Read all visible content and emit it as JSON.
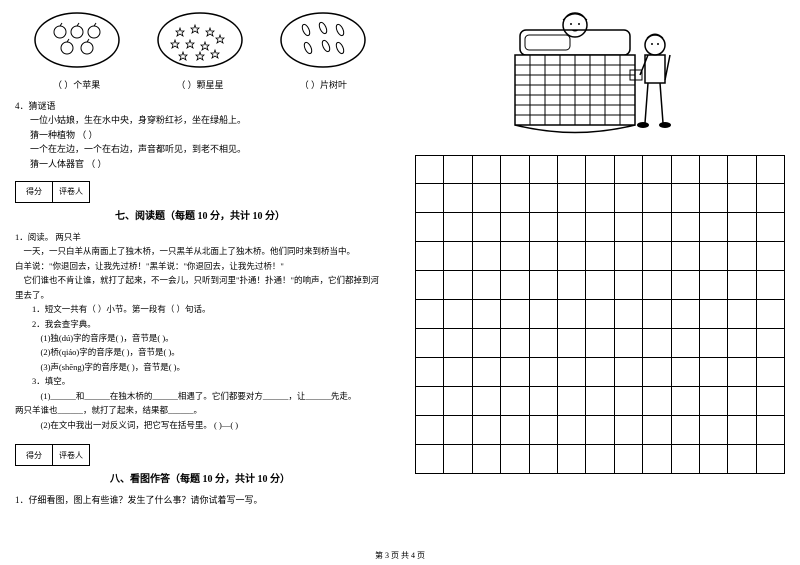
{
  "ovals": {
    "labels": [
      "（       ）个苹果",
      "（       ）颗星星",
      "（       ）片树叶"
    ]
  },
  "riddle": {
    "num": "4．猜谜语",
    "lines": [
      "一位小姑娘，生在水中央，身穿粉红衫，坐在绿船上。",
      "猜一种植物          （            ）",
      "一个在左边，一个在右边，声音都听见，到老不相见。",
      "猜一人体器官        （            ）"
    ]
  },
  "score_labels": [
    "得分",
    "评卷人"
  ],
  "section7": {
    "title": "七、阅读题（每题 10 分，共计 10 分）",
    "q1": "1．阅读。                      两只羊",
    "para1": "一天，一只白羊从南面上了独木桥，一只黑羊从北面上了独木桥。他们同时来到桥当中。",
    "para2": "白羊说：\"你退回去，让我先过桥！\"黑羊说：\"你退回去，让我先过桥！\"",
    "para3": "它们谁也不肯让谁，就打了起来，不一会儿，只听到河里\"扑通！扑通！\"的响声，它们都掉到河里去了。",
    "q_a": "1．短文一共有（  ）小节。第一段有（  ）句话。",
    "q_b": "2．我会查字典。",
    "q_b1": "(1)独(dú)字的音序是(    )，音节是(    )。",
    "q_b2": "(2)桥(qiáo)字的音序是(    )，音节是(    )。",
    "q_b3": "(3)声(shēng)字的音序是(    )，音节是(    )。",
    "q_c": "3．填空。",
    "q_c1": "(1)______和______在独木桥的______相遇了。它们都要对方______，让______先走。",
    "q_c2": "两只羊谁也______，就打了起来，结果都______。",
    "q_c3": "(2)在文中我出一对反义词，把它写在括号里。    (      )—(      )"
  },
  "section8": {
    "title": "八、看图作答（每题 10 分，共计 10 分）",
    "q1": "1．仔细看图，图上有些谁？发生了什么事？请你试着写一写。"
  },
  "page_num": "第 3 页 共 4 页",
  "grid": {
    "rows": 11,
    "cols": 13
  }
}
